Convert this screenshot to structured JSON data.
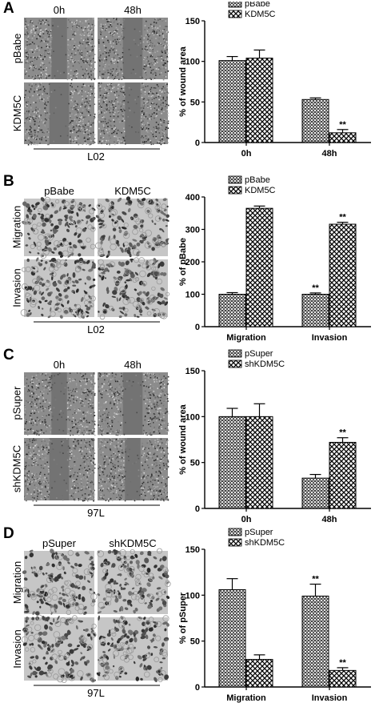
{
  "panels": [
    {
      "label": "A",
      "col_labels": [
        "0h",
        "48h"
      ],
      "row_labels": [
        "pBabe",
        "KDM5C"
      ],
      "base_label": "L02",
      "image_kind": "wound",
      "chart_data": {
        "type": "bar",
        "categories": [
          "0h",
          "48h"
        ],
        "series": [
          {
            "name": "pBabe",
            "values": [
              101,
              53
            ],
            "errors": [
              5,
              2
            ]
          },
          {
            "name": "KDM5C",
            "values": [
              104,
              12
            ],
            "errors": [
              10,
              4
            ]
          }
        ],
        "sig": [
          [
            "",
            ""
          ],
          [
            "",
            "**"
          ]
        ],
        "ylabel": "% of wound area",
        "ylim": [
          0,
          150
        ],
        "yticks": [
          0,
          50,
          100,
          150
        ]
      }
    },
    {
      "label": "B",
      "col_labels": [
        "pBabe",
        "KDM5C"
      ],
      "row_labels": [
        "Migration",
        "Invasion"
      ],
      "base_label": "L02",
      "image_kind": "cells",
      "chart_data": {
        "type": "bar",
        "categories": [
          "Migration",
          "Invasion"
        ],
        "series": [
          {
            "name": "pBabe",
            "values": [
              100,
              100
            ],
            "errors": [
              5,
              4
            ]
          },
          {
            "name": "KDM5C",
            "values": [
              365,
              316
            ],
            "errors": [
              7,
              6
            ]
          }
        ],
        "sig": [
          [
            "",
            "**"
          ],
          [
            "",
            "**"
          ]
        ],
        "ylabel": "% of pBabe",
        "ylim": [
          0,
          400
        ],
        "yticks": [
          0,
          100,
          200,
          300,
          400
        ]
      }
    },
    {
      "label": "C",
      "col_labels": [
        "0h",
        "48h"
      ],
      "row_labels": [
        "pSuper",
        "shKDM5C"
      ],
      "base_label": "97L",
      "image_kind": "wound",
      "chart_data": {
        "type": "bar",
        "categories": [
          "0h",
          "48h"
        ],
        "series": [
          {
            "name": "pSuper",
            "values": [
              100,
              33
            ],
            "errors": [
              9,
              4
            ]
          },
          {
            "name": "shKDM5C",
            "values": [
              100,
              72
            ],
            "errors": [
              14,
              5
            ]
          }
        ],
        "sig": [
          [
            "",
            ""
          ],
          [
            "",
            "**"
          ]
        ],
        "ylabel": "% of wound area",
        "ylim": [
          0,
          150
        ],
        "yticks": [
          0,
          50,
          100,
          150
        ]
      }
    },
    {
      "label": "D",
      "col_labels": [
        "pSuper",
        "shKDM5C"
      ],
      "row_labels": [
        "Migration",
        "Invasion"
      ],
      "base_label": "97L",
      "image_kind": "cells",
      "chart_data": {
        "type": "bar",
        "categories": [
          "Migration",
          "Invasion"
        ],
        "series": [
          {
            "name": "pSuper",
            "values": [
              106,
              99
            ],
            "errors": [
              12,
              13
            ]
          },
          {
            "name": "shKDM5C",
            "values": [
              30,
              18
            ],
            "errors": [
              5,
              3
            ]
          }
        ],
        "sig": [
          [
            "",
            "**"
          ],
          [
            "",
            "**"
          ]
        ],
        "ylabel": "% of pSuper",
        "ylim": [
          0,
          150
        ],
        "yticks": [
          0,
          50,
          100,
          150
        ]
      }
    }
  ]
}
